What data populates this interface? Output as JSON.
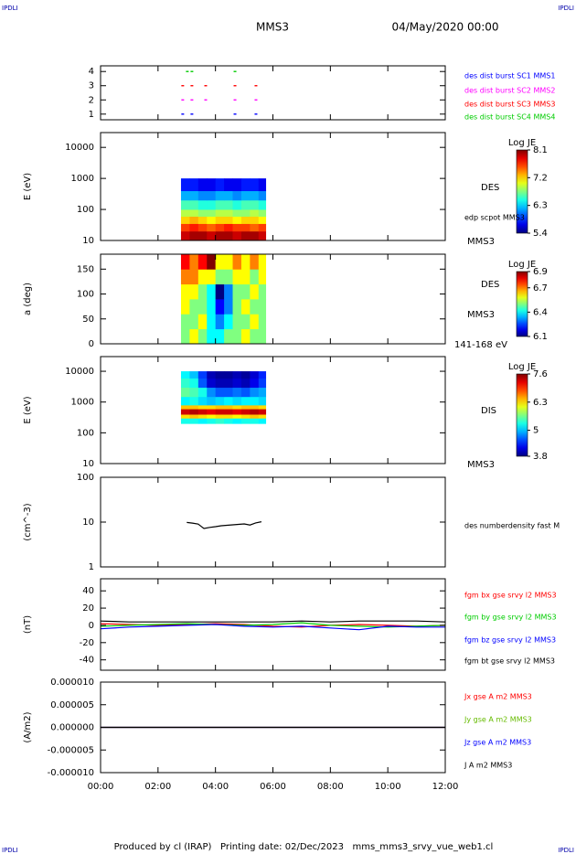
{
  "header": {
    "left_mark": "IPDLI",
    "right_mark": "IPDLI",
    "title": "MMS3",
    "date": "04/May/2020 00:00"
  },
  "footer": {
    "text": "Produced by cl (IRAP)   Printing date: 02/Dec/2023   mms_mms3_srvy_vue_web1.cl",
    "left_mark": "IPDLI",
    "right_mark": "IPDLI"
  },
  "chart_data": [
    {
      "type": "scatter",
      "ylim": [
        0.6,
        4.4
      ],
      "yticks": [
        1,
        2,
        3,
        4
      ],
      "series": [
        {
          "name": "des dist burst SC1 MMS1",
          "color": "#0000ff",
          "x": [
            2.86,
            3.18,
            4.68,
            5.41
          ],
          "values": [
            1,
            1,
            1,
            1
          ]
        },
        {
          "name": "des dist burst SC2 MMS2",
          "color": "#ff00ff",
          "x": [
            2.86,
            3.18,
            3.66,
            4.68,
            5.41
          ],
          "values": [
            2,
            2,
            2,
            2,
            2
          ]
        },
        {
          "name": "des dist burst SC3 MMS3",
          "color": "#ff0000",
          "x": [
            2.86,
            3.18,
            3.66,
            4.68,
            5.41
          ],
          "values": [
            3,
            3,
            3,
            3,
            3
          ]
        },
        {
          "name": "des dist burst SC4 MMS4",
          "color": "#00cc00",
          "x": [
            3.02,
            3.18,
            4.68
          ],
          "values": [
            4,
            4,
            4
          ]
        }
      ]
    },
    {
      "type": "heatmap",
      "ylabel": "E (eV)",
      "log_y": true,
      "ylim": [
        10,
        30000
      ],
      "yticks": [
        10,
        100,
        1000,
        10000
      ],
      "colormap": "jet",
      "colorbar": {
        "title": "Log JE",
        "lim": [
          5.4,
          8.1
        ],
        "ticks": [
          8.1,
          7.2,
          6.3,
          5.4
        ]
      },
      "annotations": [
        "DES",
        "edp scpot MMS3",
        "MMS3"
      ],
      "x_edges": [
        2.8,
        3.1,
        3.4,
        3.7,
        4.0,
        4.3,
        4.6,
        4.9,
        5.2,
        5.5,
        5.75
      ],
      "y_edges": [
        10,
        20,
        35,
        60,
        100,
        200,
        400,
        1000
      ],
      "z": [
        [
          7.9,
          8.0,
          8.0,
          7.9,
          8.0,
          8.0,
          7.9,
          8.0,
          8.0,
          7.9
        ],
        [
          7.6,
          7.7,
          7.6,
          7.5,
          7.6,
          7.7,
          7.6,
          7.6,
          7.5,
          7.6
        ],
        [
          7.2,
          7.3,
          7.2,
          7.1,
          7.2,
          7.2,
          7.1,
          7.2,
          7.2,
          7.1
        ],
        [
          6.9,
          6.9,
          6.8,
          6.8,
          6.9,
          6.9,
          6.8,
          6.8,
          6.9,
          6.8
        ],
        [
          6.6,
          6.6,
          6.5,
          6.5,
          6.6,
          6.6,
          6.5,
          6.6,
          6.6,
          6.5
        ],
        [
          6.2,
          6.2,
          6.1,
          6.1,
          6.2,
          6.2,
          6.1,
          6.2,
          6.2,
          6.1
        ],
        [
          5.8,
          5.8,
          5.7,
          5.7,
          5.8,
          5.7,
          5.7,
          5.8,
          5.8,
          5.7
        ]
      ]
    },
    {
      "type": "heatmap",
      "ylabel": "a (deg)",
      "log_y": false,
      "ylim": [
        0,
        180
      ],
      "yticks": [
        0,
        50,
        100,
        150
      ],
      "colormap": "jet",
      "colorbar": {
        "title": "Log JE",
        "lim": [
          6.1,
          6.9
        ],
        "ticks": [
          6.9,
          6.7,
          6.4,
          6.1
        ]
      },
      "annotations": [
        "DES",
        "MMS3",
        "141-168 eV"
      ],
      "x_edges": [
        2.8,
        3.1,
        3.4,
        3.7,
        4.0,
        4.3,
        4.6,
        4.9,
        5.2,
        5.5,
        5.75
      ],
      "y_edges": [
        0,
        30,
        60,
        90,
        120,
        150,
        180
      ],
      "z": [
        [
          6.5,
          6.6,
          6.5,
          6.4,
          6.4,
          6.5,
          6.5,
          6.6,
          6.5,
          6.5
        ],
        [
          6.5,
          6.5,
          6.6,
          6.4,
          6.3,
          6.4,
          6.5,
          6.5,
          6.6,
          6.5
        ],
        [
          6.6,
          6.5,
          6.5,
          6.4,
          6.2,
          6.3,
          6.5,
          6.6,
          6.5,
          6.5
        ],
        [
          6.6,
          6.6,
          6.5,
          6.4,
          6.1,
          6.3,
          6.5,
          6.5,
          6.6,
          6.5
        ],
        [
          6.7,
          6.7,
          6.6,
          6.6,
          6.5,
          6.5,
          6.6,
          6.6,
          6.5,
          6.6
        ],
        [
          6.8,
          6.7,
          6.8,
          6.9,
          6.6,
          6.6,
          6.7,
          6.6,
          6.7,
          6.6
        ]
      ]
    },
    {
      "type": "heatmap",
      "ylabel": "E (eV)",
      "log_y": true,
      "ylim": [
        10,
        30000
      ],
      "yticks": [
        10,
        100,
        1000,
        10000
      ],
      "colormap": "jet",
      "colorbar": {
        "title": "Log JE",
        "lim": [
          3.8,
          7.6
        ],
        "ticks": [
          7.6,
          6.3,
          5.0,
          3.8
        ]
      },
      "annotations": [
        "DIS",
        "MMS3"
      ],
      "x_edges": [
        2.8,
        3.1,
        3.4,
        3.7,
        4.0,
        4.3,
        4.6,
        4.9,
        5.2,
        5.5,
        5.75
      ],
      "y_edges": [
        200,
        300,
        400,
        600,
        800,
        1500,
        3000,
        6000,
        10000
      ],
      "z": [
        [
          5.3,
          5.3,
          5.2,
          5.3,
          5.4,
          5.3,
          5.2,
          5.3,
          5.3,
          5.2
        ],
        [
          6.3,
          6.4,
          6.3,
          6.2,
          6.3,
          6.3,
          6.2,
          6.3,
          6.4,
          6.3
        ],
        [
          7.3,
          7.4,
          7.3,
          7.2,
          7.3,
          7.3,
          7.2,
          7.3,
          7.4,
          7.3
        ],
        [
          6.4,
          6.4,
          6.3,
          6.3,
          6.4,
          6.4,
          6.3,
          6.4,
          6.4,
          6.3
        ],
        [
          5.2,
          5.3,
          5.1,
          5.0,
          5.1,
          5.2,
          5.1,
          5.2,
          5.2,
          5.1
        ],
        [
          5.6,
          5.5,
          5.3,
          4.8,
          4.6,
          4.6,
          4.7,
          4.6,
          4.8,
          4.9
        ],
        [
          5.4,
          5.3,
          4.6,
          4.1,
          4.0,
          4.0,
          4.1,
          4.0,
          4.2,
          4.5
        ],
        [
          5.2,
          5.0,
          4.5,
          4.0,
          3.9,
          3.9,
          4.0,
          3.9,
          4.1,
          4.4
        ]
      ]
    },
    {
      "type": "line",
      "ylabel": "(cm^-3)",
      "log_y": true,
      "ylim": [
        1,
        100
      ],
      "yticks": [
        1,
        10,
        100
      ],
      "series": [
        {
          "name": "des numberdensity fast M",
          "color": "#000000",
          "x": [
            3.0,
            3.2,
            3.4,
            3.5,
            3.6,
            3.8,
            4.0,
            4.2,
            4.4,
            4.6,
            4.8,
            5.0,
            5.2,
            5.4,
            5.6
          ],
          "values": [
            9.8,
            9.5,
            9.0,
            8.0,
            7.2,
            7.6,
            7.9,
            8.3,
            8.5,
            8.7,
            8.9,
            9.1,
            8.6,
            9.6,
            10.2
          ]
        }
      ]
    },
    {
      "type": "line",
      "ylabel": "(nT)",
      "log_y": false,
      "ylim": [
        -52,
        54
      ],
      "yticks": [
        -40,
        -20,
        0,
        20,
        40
      ],
      "series": [
        {
          "name": "fgm bx gse srvy l2 MMS3",
          "color": "#ff0000",
          "x": [
            0,
            1,
            2,
            3,
            4,
            5,
            6,
            7,
            8,
            9,
            10,
            11,
            12
          ],
          "values": [
            2,
            1,
            0,
            1,
            2,
            1,
            -1,
            -2,
            0,
            1,
            0,
            -1,
            0
          ]
        },
        {
          "name": "fgm by gse srvy l2 MMS3",
          "color": "#00cc00",
          "x": [
            0,
            1,
            2,
            3,
            4,
            5,
            6,
            7,
            8,
            9,
            10,
            11,
            12
          ],
          "values": [
            -1,
            0,
            1,
            2,
            1,
            0,
            1,
            3,
            0,
            -1,
            -2,
            -1,
            0
          ]
        },
        {
          "name": "fgm bz gse srvy l2 MMS3",
          "color": "#0000ff",
          "x": [
            0,
            1,
            2,
            3,
            4,
            5,
            6,
            7,
            8,
            9,
            10,
            11,
            12
          ],
          "values": [
            -4,
            -2,
            -1,
            0,
            1,
            -1,
            -2,
            -1,
            -3,
            -5,
            -1,
            -2,
            -2
          ]
        },
        {
          "name": "fgm bt gse srvy l2 MMS3",
          "color": "#000000",
          "x": [
            0,
            1,
            2,
            3,
            4,
            5,
            6,
            7,
            8,
            9,
            10,
            11,
            12
          ],
          "values": [
            5,
            4,
            4,
            4,
            4,
            4,
            4,
            5,
            4,
            5,
            5,
            5,
            4
          ]
        }
      ]
    },
    {
      "type": "line",
      "ylabel": "(A/m2)",
      "log_y": false,
      "ylim": [
        -1e-05,
        1e-05
      ],
      "yticks": [
        {
          "value": 1e-05,
          "label": "0.000010"
        },
        {
          "value": 5e-06,
          "label": "0.000005"
        },
        {
          "value": 0,
          "label": "0.000000"
        },
        {
          "value": -5e-06,
          "label": "-0.000005"
        },
        {
          "value": -1e-05,
          "label": "-0.000010"
        }
      ],
      "xlim": [
        0,
        12
      ],
      "xticks": [
        {
          "value": 0,
          "label": "00:00"
        },
        {
          "value": 2,
          "label": "02:00"
        },
        {
          "value": 4,
          "label": "04:00"
        },
        {
          "value": 6,
          "label": "06:00"
        },
        {
          "value": 8,
          "label": "08:00"
        },
        {
          "value": 10,
          "label": "10:00"
        },
        {
          "value": 12,
          "label": "12:00"
        }
      ],
      "series": [
        {
          "name": "Jx gse A m2 MMS3",
          "color": "#ff0000",
          "x": [
            0,
            12
          ],
          "values": [
            0,
            0
          ]
        },
        {
          "name": "Jy gse A m2 MMS3",
          "color": "#66bb00",
          "x": [
            0,
            12
          ],
          "values": [
            0,
            0
          ]
        },
        {
          "name": "Jz gse A m2 MMS3",
          "color": "#0000ff",
          "x": [
            0,
            12
          ],
          "values": [
            0,
            0
          ]
        },
        {
          "name": "J A m2 MMS3",
          "color": "#000000",
          "x": [
            0,
            12
          ],
          "values": [
            0,
            0
          ]
        }
      ]
    }
  ]
}
